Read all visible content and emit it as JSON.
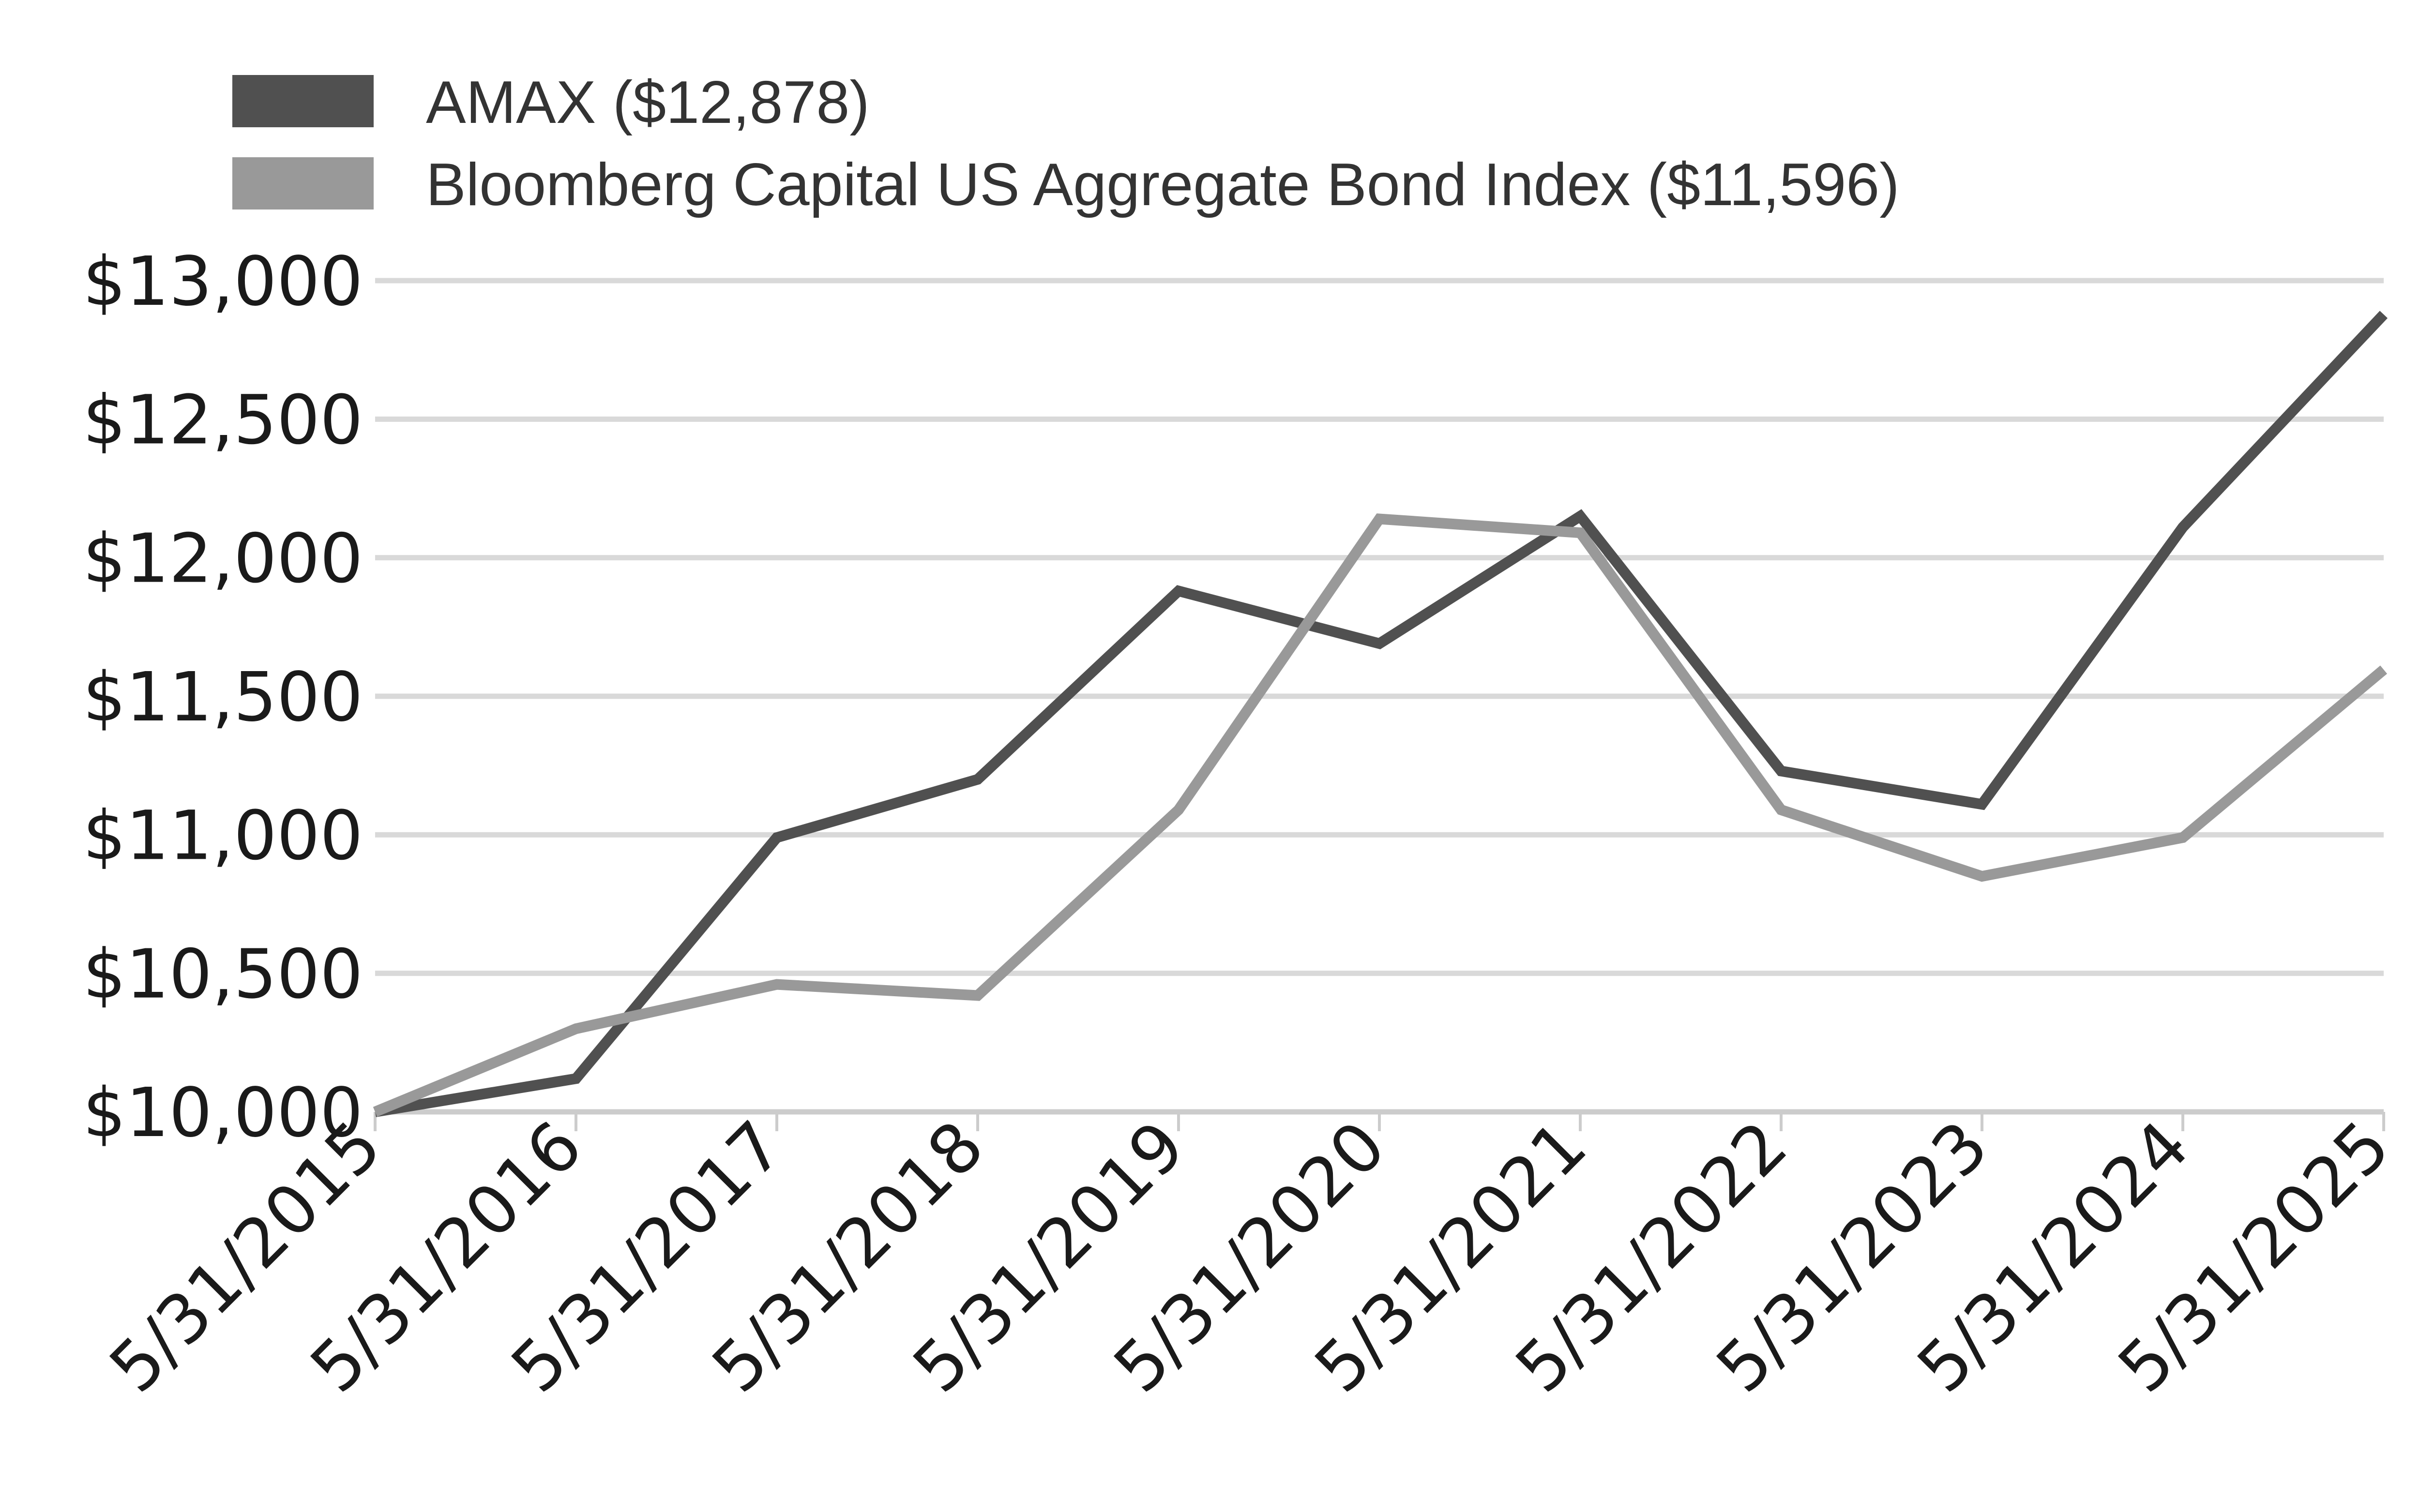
{
  "chart_data": {
    "type": "line",
    "title": "",
    "xlabel": "",
    "ylabel": "",
    "x": [
      "5/31/2015",
      "5/31/2016",
      "5/31/2017",
      "5/31/2018",
      "5/31/2019",
      "5/31/2020",
      "5/31/2021",
      "5/31/2022",
      "5/31/2023",
      "5/31/2024",
      "5/31/2025"
    ],
    "series": [
      {
        "name": "AMAX ($12,878)",
        "color": "#505050",
        "values": [
          10000,
          10120,
          10990,
          11200,
          11880,
          11690,
          12150,
          11230,
          11110,
          12110,
          12878
        ]
      },
      {
        "name": "Bloomberg Capital US Aggregate Bond Index ($11,596)",
        "color": "#999999",
        "values": [
          10000,
          10300,
          10460,
          10420,
          11090,
          12140,
          12090,
          11090,
          10850,
          10990,
          11596
        ]
      }
    ],
    "ylim": [
      10000,
      13000
    ],
    "yticks": [
      10000,
      10500,
      11000,
      11500,
      12000,
      12500,
      13000
    ],
    "ytick_labels": [
      "$10,000",
      "$10,500",
      "$11,000",
      "$11,500",
      "$12,000",
      "$12,500",
      "$13,000"
    ],
    "grid": true,
    "legend_position": "top-left",
    "gridline_color": "#d9d9d9",
    "axis_color": "#cccccc"
  }
}
